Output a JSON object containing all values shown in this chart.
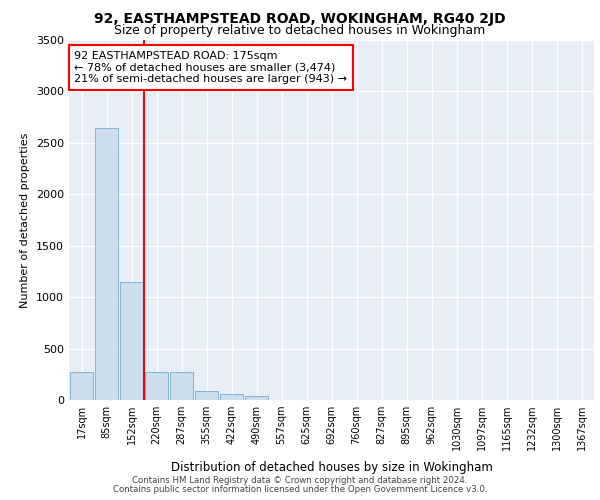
{
  "title_line1": "92, EASTHAMPSTEAD ROAD, WOKINGHAM, RG40 2JD",
  "title_line2": "Size of property relative to detached houses in Wokingham",
  "xlabel": "Distribution of detached houses by size in Wokingham",
  "ylabel": "Number of detached properties",
  "categories": [
    "17sqm",
    "85sqm",
    "152sqm",
    "220sqm",
    "287sqm",
    "355sqm",
    "422sqm",
    "490sqm",
    "557sqm",
    "625sqm",
    "692sqm",
    "760sqm",
    "827sqm",
    "895sqm",
    "962sqm",
    "1030sqm",
    "1097sqm",
    "1165sqm",
    "1232sqm",
    "1300sqm",
    "1367sqm"
  ],
  "values": [
    270,
    2640,
    1150,
    275,
    275,
    90,
    55,
    40,
    0,
    0,
    0,
    0,
    0,
    0,
    0,
    0,
    0,
    0,
    0,
    0,
    0
  ],
  "bar_color": "#ccddee",
  "bar_edge_color": "#7aacc8",
  "vline_color": "red",
  "vline_x": 2.5,
  "annotation_text": "92 EASTHAMPSTEAD ROAD: 175sqm\n← 78% of detached houses are smaller (3,474)\n21% of semi-detached houses are larger (943) →",
  "annotation_box_color": "white",
  "annotation_box_edge": "red",
  "ylim": [
    0,
    3500
  ],
  "yticks": [
    0,
    500,
    1000,
    1500,
    2000,
    2500,
    3000,
    3500
  ],
  "background_color": "#e8eef8",
  "grid_color": "white",
  "footer_line1": "Contains HM Land Registry data © Crown copyright and database right 2024.",
  "footer_line2": "Contains public sector information licensed under the Open Government Licence v3.0."
}
